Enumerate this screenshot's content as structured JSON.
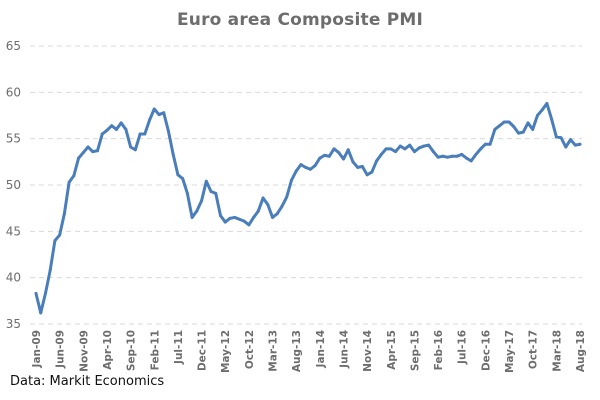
{
  "chart_data": {
    "type": "line",
    "title": "Euro area Composite PMI",
    "xlabel": "",
    "ylabel": "",
    "ylim": [
      35,
      65
    ],
    "yticks": [
      35,
      40,
      45,
      50,
      55,
      60,
      65
    ],
    "grid": true,
    "legend": "none",
    "x_start": "Jan-09",
    "x_end": "Aug-18",
    "frequency": "monthly",
    "xtick_labels": [
      "Jan-09",
      "Jun-09",
      "Nov-09",
      "Apr-10",
      "Sep-10",
      "Feb-11",
      "Jul-11",
      "Dec-11",
      "May-12",
      "Oct-12",
      "Mar-13",
      "Aug-13",
      "Jan-14",
      "Jun-14",
      "Nov-14",
      "Apr-15",
      "Sep-15",
      "Feb-16",
      "Jul-16",
      "Dec-16",
      "May-17",
      "Oct-17",
      "Mar-18",
      "Aug-18"
    ],
    "series": [
      {
        "name": "Euro area Composite PMI",
        "color": "#4a7ebb",
        "values": [
          38.3,
          36.2,
          38.3,
          40.8,
          44.0,
          44.6,
          46.9,
          50.3,
          51.0,
          52.9,
          53.5,
          54.1,
          53.6,
          53.7,
          55.5,
          55.9,
          56.4,
          56.0,
          56.7,
          56.0,
          54.1,
          53.8,
          55.5,
          55.5,
          57.0,
          58.2,
          57.6,
          57.8,
          55.8,
          53.3,
          51.1,
          50.7,
          49.1,
          46.5,
          47.2,
          48.3,
          50.4,
          49.3,
          49.1,
          46.7,
          46.0,
          46.4,
          46.5,
          46.3,
          46.1,
          45.7,
          46.5,
          47.2,
          48.6,
          47.9,
          46.5,
          46.9,
          47.7,
          48.7,
          50.5,
          51.5,
          52.2,
          51.9,
          51.7,
          52.1,
          52.9,
          53.2,
          53.1,
          53.9,
          53.5,
          52.8,
          53.8,
          52.5,
          51.9,
          52.0,
          51.1,
          51.4,
          52.6,
          53.3,
          53.9,
          53.9,
          53.6,
          54.2,
          53.9,
          54.3,
          53.6,
          54.0,
          54.2,
          54.3,
          53.6,
          53.0,
          53.1,
          53.0,
          53.1,
          53.1,
          53.3,
          52.9,
          52.6,
          53.3,
          53.9,
          54.4,
          54.4,
          56.0,
          56.4,
          56.8,
          56.8,
          56.3,
          55.6,
          55.7,
          56.7,
          56.0,
          57.5,
          58.1,
          58.8,
          57.1,
          55.2,
          55.1,
          54.1,
          54.9,
          54.3,
          54.4
        ]
      }
    ]
  },
  "source_note": "Data: Markit Economics"
}
